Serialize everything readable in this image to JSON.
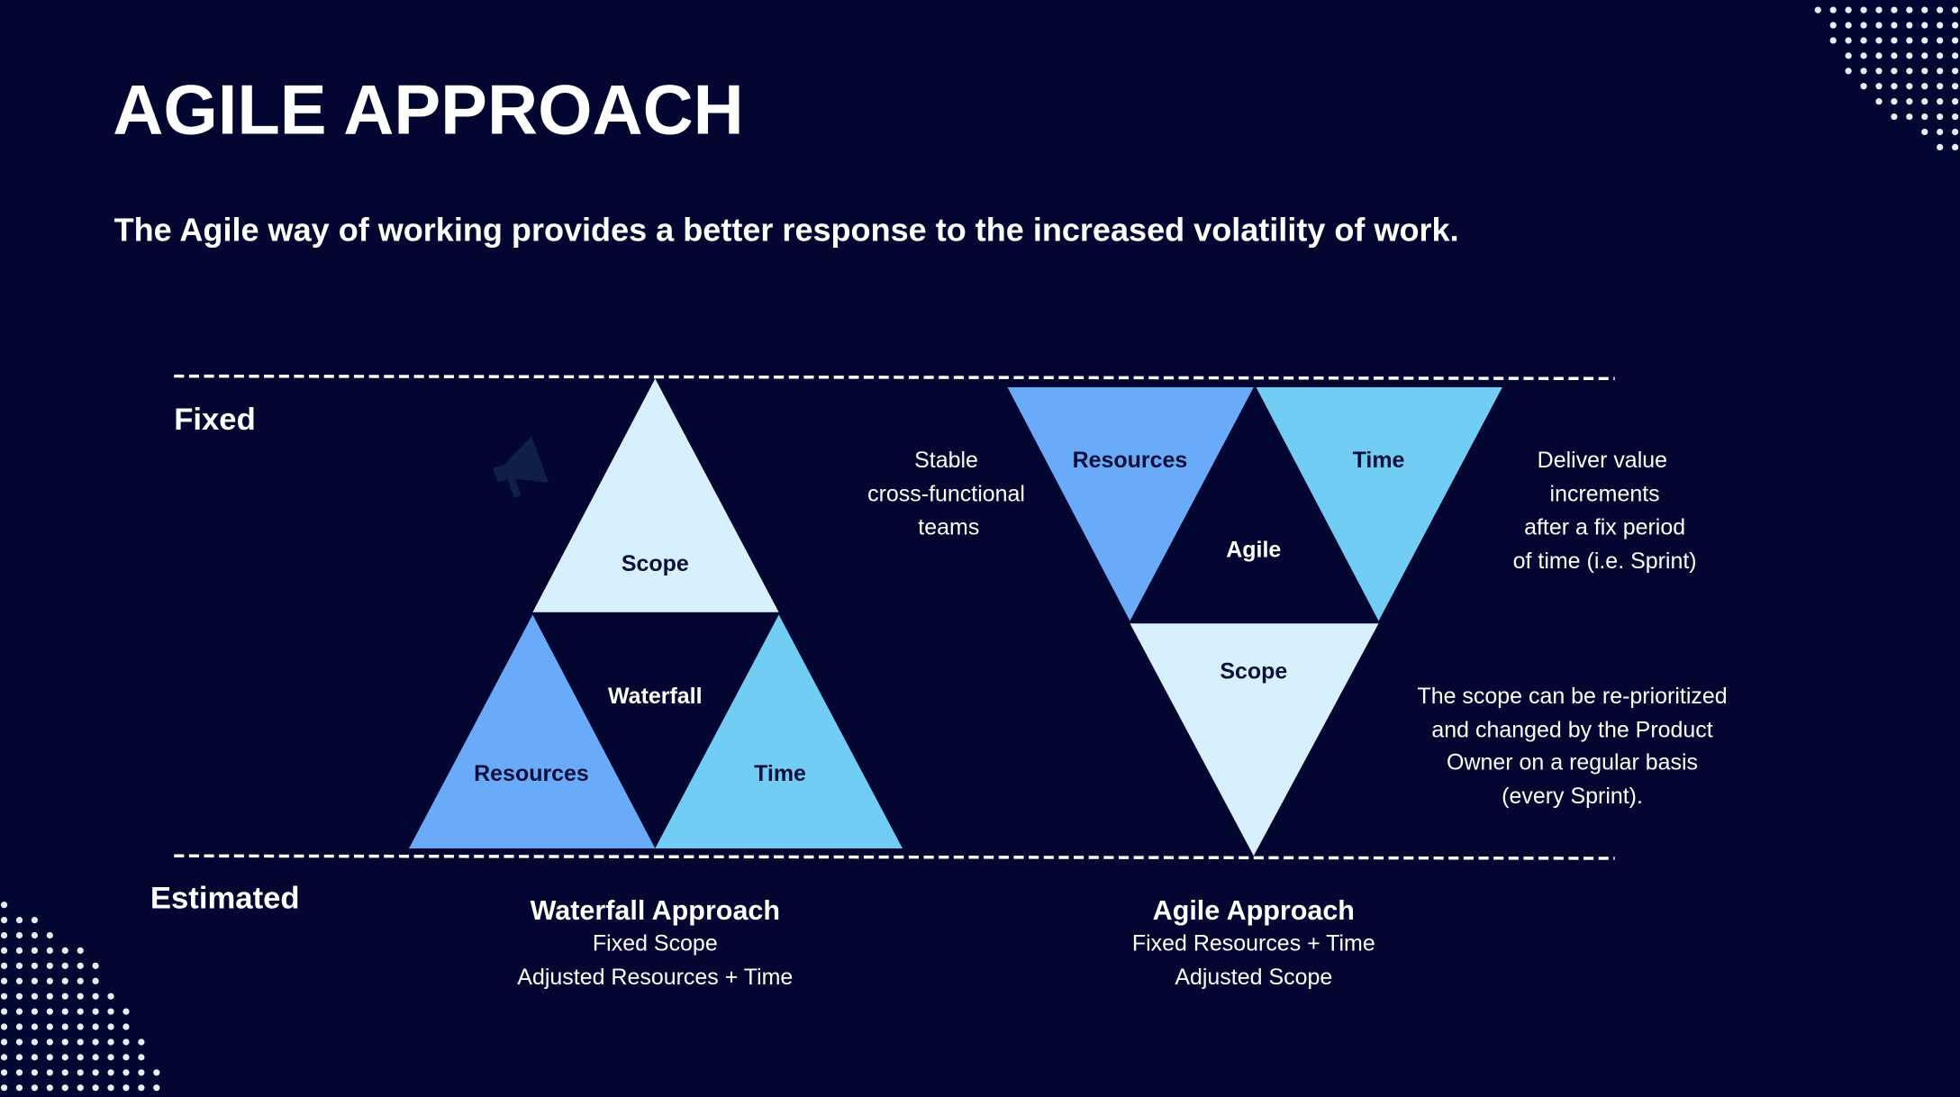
{
  "title": "AGILE APPROACH",
  "subtitle": "The Agile way of working provides a better response to the increased volatility of work.",
  "labels": {
    "fixed": "Fixed",
    "estimated": "Estimated"
  },
  "waterfall": {
    "center": "Waterfall",
    "scope": "Scope",
    "resources": "Resources",
    "time": "Time",
    "caption_title": "Waterfall Approach",
    "caption_lines": [
      "Fixed Scope",
      "Adjusted Resources + Time"
    ]
  },
  "agile": {
    "center": "Agile",
    "scope": "Scope",
    "resources": "Resources",
    "time": "Time",
    "caption_title": "Agile Approach",
    "caption_lines": [
      "Fixed Resources + Time",
      "Adjusted  Scope"
    ]
  },
  "notes": {
    "resources": [
      "Stable",
      "cross-functional",
      "teams"
    ],
    "time": [
      "Deliver value",
      "increments",
      "after a fix period",
      "of time (i.e. Sprint)"
    ],
    "scope": [
      "The scope can be re-prioritized",
      "and changed  by the Product",
      "Owner on a regular basis",
      "(every Sprint)."
    ]
  },
  "colors": {
    "background": "#020631",
    "resources": "#6aabf9",
    "time": "#72cdf4",
    "scope": "#d6f1fd",
    "text_dark": "#0a0f3a",
    "text_light": "#ffffff"
  },
  "icons": {
    "decor": "megaphone-icon"
  }
}
